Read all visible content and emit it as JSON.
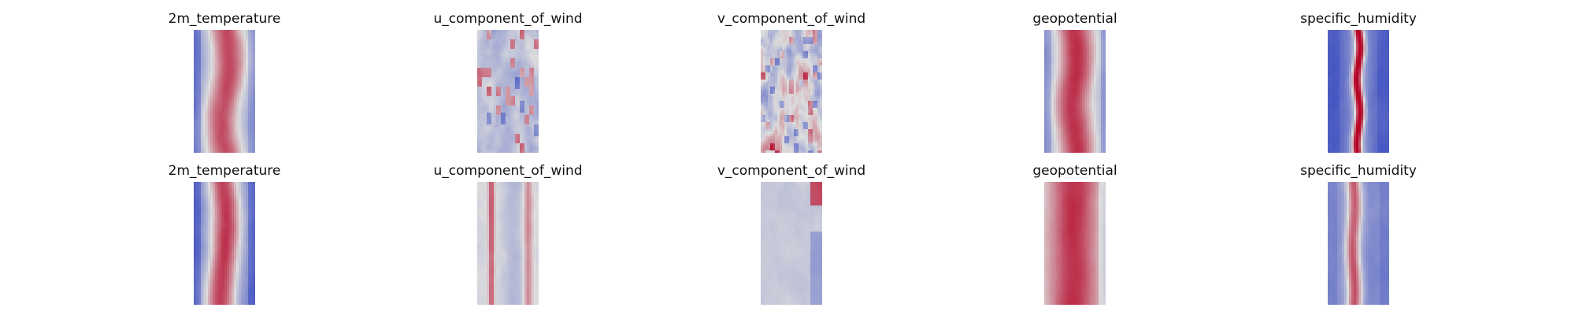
{
  "figure": {
    "background": "#ffffff",
    "colormap": "coolwarm",
    "colors": {
      "cold": "#3b4cc0",
      "neutral": "#dddddd",
      "warm": "#b40426"
    }
  },
  "chart_data": [
    {
      "type": "heatmap",
      "row": 1,
      "column": 1,
      "title": "2m_temperature",
      "variable": "2m_temperature",
      "colormap": "coolwarm",
      "pattern": "vertical warm band, cold at left edge",
      "axes_visible": false
    },
    {
      "type": "heatmap",
      "row": 1,
      "column": 2,
      "title": "u_component_of_wind",
      "variable": "u_component_of_wind",
      "colormap": "coolwarm",
      "pattern": "mixed blue field with scattered warm streaks",
      "axes_visible": false
    },
    {
      "type": "heatmap",
      "row": 1,
      "column": 3,
      "title": "v_component_of_wind",
      "variable": "v_component_of_wind",
      "colormap": "coolwarm",
      "pattern": "noisy mixed warm and cold patches",
      "axes_visible": false
    },
    {
      "type": "heatmap",
      "row": 1,
      "column": 4,
      "title": "geopotential",
      "variable": "geopotential",
      "colormap": "coolwarm",
      "pattern": "broad warm center band",
      "axes_visible": false
    },
    {
      "type": "heatmap",
      "row": 1,
      "column": 5,
      "title": "specific_humidity",
      "variable": "specific_humidity",
      "colormap": "coolwarm",
      "pattern": "narrow warm center stripe on strong blue background",
      "axes_visible": false
    },
    {
      "type": "heatmap",
      "row": 2,
      "column": 1,
      "title": "2m_temperature",
      "variable": "2m_temperature",
      "colormap": "coolwarm",
      "pattern": "warm center band, blue edges",
      "axes_visible": false
    },
    {
      "type": "heatmap",
      "row": 2,
      "column": 2,
      "title": "u_component_of_wind",
      "variable": "u_component_of_wind",
      "colormap": "coolwarm",
      "pattern": "pale field with red stripe at left and right",
      "axes_visible": false
    },
    {
      "type": "heatmap",
      "row": 2,
      "column": 3,
      "title": "v_component_of_wind",
      "variable": "v_component_of_wind",
      "colormap": "coolwarm",
      "pattern": "pale bluish field with dark red top-right corner",
      "axes_visible": false
    },
    {
      "type": "heatmap",
      "row": 2,
      "column": 4,
      "title": "geopotential",
      "variable": "geopotential",
      "colormap": "coolwarm",
      "pattern": "wide warm vertical field",
      "axes_visible": false
    },
    {
      "type": "heatmap",
      "row": 2,
      "column": 5,
      "title": "specific_humidity",
      "variable": "specific_humidity",
      "colormap": "coolwarm",
      "pattern": "cool field with warm vertical stripe",
      "axes_visible": false
    }
  ]
}
